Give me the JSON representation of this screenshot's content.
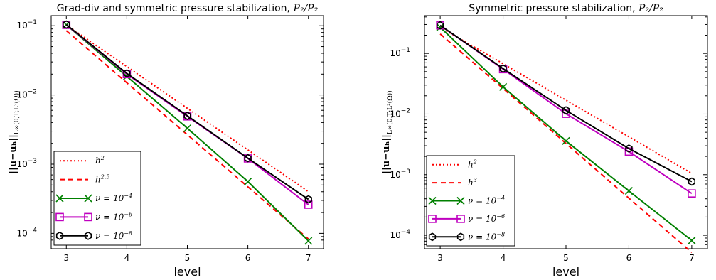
{
  "chart_data": [
    {
      "type": "line",
      "title": "Grad-div and symmetric pressure stabilization, ",
      "title_math": "P₂/P₂",
      "xlabel": "level",
      "ylabel": "||u−uₕ||",
      "ylabel_sub": "L∞(0,T;L²(Ω))",
      "yscale": "log",
      "xlim": [
        2.75,
        7.25
      ],
      "ylim": [
        6e-05,
        0.14
      ],
      "x_ticks": [
        3,
        4,
        5,
        6,
        7
      ],
      "y_ticks": [
        {
          "value": 0.1,
          "base": "10",
          "exp": "−1"
        },
        {
          "value": 0.01,
          "base": "10",
          "exp": "−2"
        },
        {
          "value": 0.001,
          "base": "10",
          "exp": "−3"
        },
        {
          "value": 0.0001,
          "base": "10",
          "exp": "−4"
        }
      ],
      "grid": false,
      "legend_position": "lower-left",
      "x": [
        3,
        4,
        5,
        6,
        7
      ],
      "series": [
        {
          "name": "h",
          "name_sup": "2",
          "style": "dotted",
          "color": "#ff0000",
          "marker": "none",
          "values": [
            0.103,
            0.0257,
            0.00642,
            0.00161,
            0.000402
          ]
        },
        {
          "name": "h",
          "name_sup": "2.5",
          "style": "dashed",
          "color": "#ff0000",
          "marker": "none",
          "values": [
            0.085,
            0.015,
            0.00266,
            0.00047,
            8.3e-05
          ]
        },
        {
          "name": "ν = 10",
          "name_sup": "−4",
          "style": "solid",
          "color": "#008000",
          "marker": "x",
          "values": [
            0.103,
            0.0185,
            0.0033,
            0.00056,
            7.8e-05
          ]
        },
        {
          "name": "ν = 10",
          "name_sup": "−6",
          "style": "solid",
          "color": "#bf00bf",
          "marker": "square",
          "values": [
            0.103,
            0.02,
            0.0049,
            0.00121,
            0.00026
          ]
        },
        {
          "name": "ν = 10",
          "name_sup": "−8",
          "style": "solid",
          "color": "#000000",
          "marker": "hexagon",
          "values": [
            0.104,
            0.0205,
            0.005,
            0.00122,
            0.00031
          ]
        }
      ]
    },
    {
      "type": "line",
      "title": "Symmetric pressure stabilization, ",
      "title_math": "P₂/P₂",
      "xlabel": "level",
      "ylabel": "||u−uₕ||",
      "ylabel_sub": "L∞(0,T;L²(Ω))",
      "yscale": "log",
      "xlim": [
        2.75,
        7.25
      ],
      "ylim": [
        6e-05,
        0.42
      ],
      "x_ticks": [
        3,
        4,
        5,
        6,
        7
      ],
      "y_ticks": [
        {
          "value": 0.1,
          "base": "10",
          "exp": "−1"
        },
        {
          "value": 0.01,
          "base": "10",
          "exp": "−2"
        },
        {
          "value": 0.001,
          "base": "10",
          "exp": "−3"
        },
        {
          "value": 0.0001,
          "base": "10",
          "exp": "−4"
        }
      ],
      "grid": false,
      "legend_position": "lower-left",
      "x": [
        3,
        4,
        5,
        6,
        7
      ],
      "series": [
        {
          "name": "h",
          "name_sup": "2",
          "style": "dotted",
          "color": "#ff0000",
          "marker": "none",
          "values": [
            0.27,
            0.0675,
            0.0169,
            0.00422,
            0.00105
          ]
        },
        {
          "name": "h",
          "name_sup": "3",
          "style": "dashed",
          "color": "#ff0000",
          "marker": "none",
          "values": [
            0.21,
            0.0263,
            0.00328,
            0.00041,
            5.2e-05
          ]
        },
        {
          "name": "ν = 10",
          "name_sup": "−4",
          "style": "solid",
          "color": "#008000",
          "marker": "x",
          "values": [
            0.27,
            0.028,
            0.0036,
            0.00054,
            8.2e-05
          ]
        },
        {
          "name": "ν = 10",
          "name_sup": "−6",
          "style": "solid",
          "color": "#bf00bf",
          "marker": "square",
          "values": [
            0.29,
            0.055,
            0.0101,
            0.0024,
            0.00049
          ]
        },
        {
          "name": "ν = 10",
          "name_sup": "−8",
          "style": "solid",
          "color": "#000000",
          "marker": "hexagon",
          "values": [
            0.29,
            0.056,
            0.0115,
            0.0027,
            0.00077
          ]
        }
      ]
    }
  ]
}
